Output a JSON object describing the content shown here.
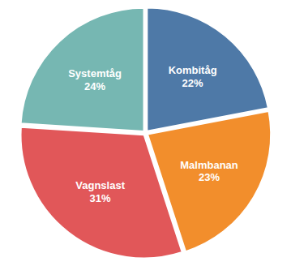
{
  "chart_data": {
    "type": "pie",
    "categories": [
      "Kombitåg",
      "Malmbanan",
      "Vagnslast",
      "Systemtåg"
    ],
    "values": [
      22,
      23,
      31,
      24
    ],
    "value_labels": [
      "22%",
      "23%",
      "31%",
      "24%"
    ],
    "data_labels": true
  }
}
